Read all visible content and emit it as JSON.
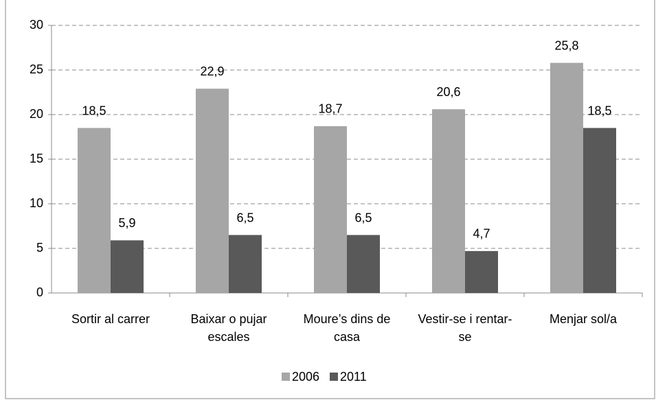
{
  "chart_data": {
    "type": "bar",
    "categories": [
      "Sortir al carrer",
      "Baixar o pujar escales",
      "Moure’s dins de casa",
      "Vestir-se i rentar-se",
      "Menjar sol/a"
    ],
    "series": [
      {
        "name": "2006",
        "color": "#a6a6a6",
        "values": [
          18.5,
          22.9,
          18.7,
          20.6,
          25.8
        ],
        "value_labels": [
          "18,5",
          "22,9",
          "18,7",
          "20,6",
          "25,8"
        ]
      },
      {
        "name": "2011",
        "color": "#595959",
        "values": [
          5.9,
          6.5,
          6.5,
          4.7,
          18.5
        ],
        "value_labels": [
          "5,9",
          "6,5",
          "6,5",
          "4,7",
          "18,5"
        ]
      }
    ],
    "ylim": [
      0,
      30
    ],
    "yticks": [
      0,
      5,
      10,
      15,
      20,
      25,
      30
    ],
    "grid": true,
    "legend": "bottom"
  }
}
